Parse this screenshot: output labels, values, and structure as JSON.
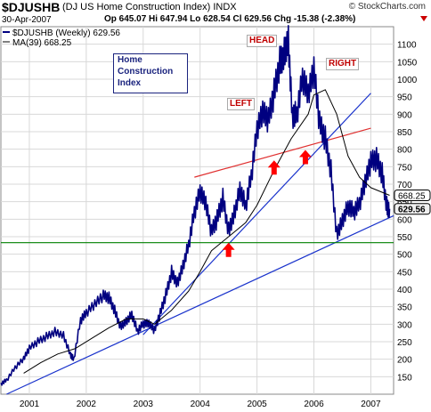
{
  "header": {
    "symbol": "$DJUSHB",
    "description": "(DJ US Home Construction Index) INDX",
    "brand": "© StockCharts.com",
    "date": "30-Apr-2007",
    "ohlc": "Op 645.07  Hi 647.94  Lo 628.54  Cl 629.56  Chg -15.38 (-2.38%)",
    "change_color": "#cc0000"
  },
  "legend": {
    "line1": "$DJUSHB (Weekly) 629.56",
    "line2": "MA(39) 668.25"
  },
  "title_box": {
    "line1": "Home",
    "line2": "Construction",
    "line3": "Index"
  },
  "annotations": {
    "head": "HEAD",
    "left": "LEFT",
    "right": "RIGHT"
  },
  "chart_data": {
    "type": "line",
    "y_axis_side": "right",
    "ylim": [
      100,
      1150
    ],
    "y_ticks": [
      150,
      200,
      250,
      300,
      350,
      400,
      450,
      500,
      550,
      600,
      650,
      700,
      750,
      800,
      850,
      900,
      950,
      1000,
      1050,
      1100
    ],
    "xlim": [
      2000.5,
      2007.4
    ],
    "x_ticks": [
      {
        "value": 2001,
        "label": "2001"
      },
      {
        "value": 2002,
        "label": "2002"
      },
      {
        "value": 2003,
        "label": "2003"
      },
      {
        "value": 2004,
        "label": "2004"
      },
      {
        "value": 2005,
        "label": "2005"
      },
      {
        "value": 2006,
        "label": "2006"
      },
      {
        "value": 2007,
        "label": "2007"
      }
    ],
    "grid": true,
    "series": [
      {
        "name": "$DJUSHB (Weekly)",
        "color": "#000080",
        "style": "price",
        "x": [
          2000.5,
          2000.6,
          2000.75,
          2000.9,
          2001.0,
          2001.15,
          2001.3,
          2001.45,
          2001.6,
          2001.72,
          2001.78,
          2001.9,
          2002.0,
          2002.15,
          2002.3,
          2002.4,
          2002.5,
          2002.6,
          2002.7,
          2002.8,
          2002.9,
          2003.0,
          2003.1,
          2003.2,
          2003.3,
          2003.4,
          2003.5,
          2003.6,
          2003.7,
          2003.8,
          2003.9,
          2004.0,
          2004.1,
          2004.2,
          2004.3,
          2004.4,
          2004.5,
          2004.6,
          2004.7,
          2004.8,
          2004.9,
          2005.0,
          2005.1,
          2005.2,
          2005.3,
          2005.4,
          2005.48,
          2005.55,
          2005.62,
          2005.7,
          2005.8,
          2005.9,
          2006.0,
          2006.1,
          2006.2,
          2006.3,
          2006.4,
          2006.5,
          2006.6,
          2006.7,
          2006.8,
          2006.9,
          2007.0,
          2007.1,
          2007.2,
          2007.28,
          2007.33
        ],
        "values": [
          130,
          140,
          175,
          200,
          230,
          250,
          265,
          280,
          270,
          215,
          200,
          310,
          330,
          355,
          380,
          375,
          340,
          295,
          310,
          330,
          280,
          300,
          300,
          280,
          330,
          385,
          450,
          420,
          470,
          530,
          620,
          675,
          640,
          560,
          600,
          660,
          570,
          620,
          690,
          640,
          720,
          850,
          900,
          880,
          960,
          1050,
          1080,
          1120,
          900,
          900,
          1000,
          950,
          1020,
          870,
          830,
          740,
          560,
          600,
          640,
          620,
          640,
          700,
          760,
          770,
          730,
          640,
          629.56
        ]
      },
      {
        "name": "MA(39)",
        "color": "#000000",
        "style": "ma",
        "x": [
          2000.9,
          2001.2,
          2001.5,
          2001.8,
          2002.1,
          2002.4,
          2002.7,
          2003.0,
          2003.2,
          2003.5,
          2003.8,
          2004.0,
          2004.2,
          2004.5,
          2004.8,
          2005.0,
          2005.3,
          2005.6,
          2005.9,
          2006.0,
          2006.2,
          2006.4,
          2006.6,
          2006.8,
          2007.0,
          2007.33
        ],
        "values": [
          160,
          190,
          215,
          230,
          260,
          290,
          315,
          315,
          300,
          340,
          395,
          450,
          510,
          550,
          590,
          640,
          740,
          830,
          900,
          955,
          970,
          900,
          780,
          720,
          690,
          668.25
        ]
      }
    ],
    "trendlines": [
      {
        "name": "support-long",
        "color": "#1a33cc",
        "points": [
          [
            2000.6,
            100
          ],
          [
            2007.4,
            610
          ]
        ]
      },
      {
        "name": "support-steep",
        "color": "#1a33cc",
        "points": [
          [
            2003.0,
            270
          ],
          [
            2007.0,
            960
          ]
        ]
      },
      {
        "name": "neckline",
        "color": "#e03030",
        "points": [
          [
            2003.9,
            720
          ],
          [
            2007.0,
            860
          ]
        ]
      },
      {
        "name": "horizontal-support",
        "color": "#008000",
        "points": [
          [
            2000.5,
            533
          ],
          [
            2007.4,
            533
          ]
        ]
      }
    ],
    "arrows": [
      {
        "name": "arrow-left",
        "x": 2004.5,
        "y": 510,
        "color": "#ff0000"
      },
      {
        "name": "arrow-mid",
        "x": 2005.3,
        "y": 745,
        "color": "#ff0000"
      },
      {
        "name": "arrow-right",
        "x": 2005.85,
        "y": 775,
        "color": "#ff0000"
      }
    ],
    "last_value_labels": [
      {
        "value": "668.25",
        "y": 668.25,
        "style": "outline"
      },
      {
        "value": "629.56",
        "y": 629.56,
        "style": "filled"
      }
    ]
  }
}
